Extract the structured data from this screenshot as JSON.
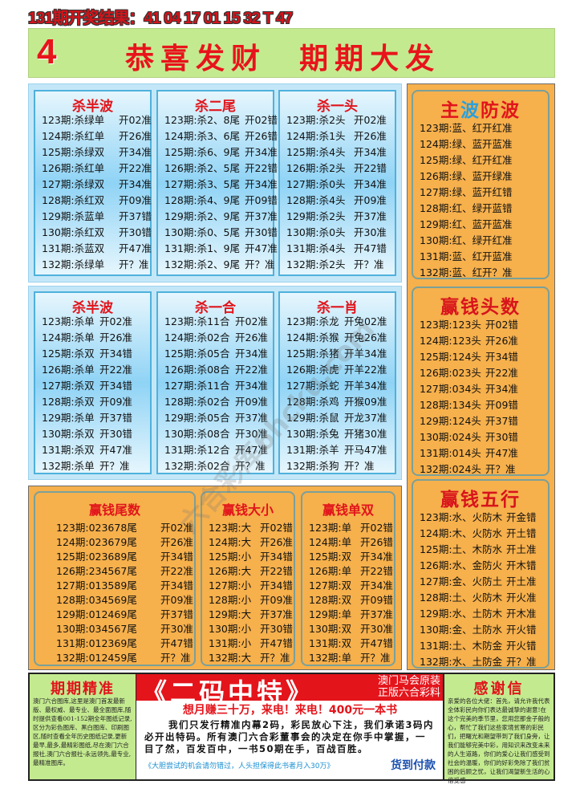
{
  "header": {
    "result": "131期开奖结果：41 04 17 01 15 32 T 47"
  },
  "banner": {
    "number": "4",
    "title": "恭喜发财  期期大发"
  },
  "watermark": "六合彩库6hcku.com",
  "blue1": [
    {
      "title": "杀半波",
      "rows": [
        [
          "123期:杀绿单",
          "开02准"
        ],
        [
          "124期:杀红单",
          "开26准"
        ],
        [
          "125期:杀绿双",
          "开34准"
        ],
        [
          "126期:杀红单",
          "开22准"
        ],
        [
          "127期:杀绿双",
          "开34准"
        ],
        [
          "128期:杀红双",
          "开09准"
        ],
        [
          "129期:杀蓝单",
          "开37错"
        ],
        [
          "130期:杀红双",
          "开30错"
        ],
        [
          "131期:杀蓝双",
          "开47准"
        ],
        [
          "132期:杀绿单",
          "开？准"
        ]
      ]
    },
    {
      "title": "杀二尾",
      "rows": [
        [
          "123期:杀2、8尾",
          "开02错"
        ],
        [
          "124期:杀3、6尾",
          "开26错"
        ],
        [
          "125期:杀6、9尾",
          "开34准"
        ],
        [
          "126期:杀2、5尾",
          "开22错"
        ],
        [
          "127期:杀3、5尾",
          "开34准"
        ],
        [
          "128期:杀4、9尾",
          "开09错"
        ],
        [
          "129期:杀2、9尾",
          "开37准"
        ],
        [
          "130期:杀0、5尾",
          "开30错"
        ],
        [
          "131期:杀1、9尾",
          "开47准"
        ],
        [
          "132期:杀2、9尾",
          "开？准"
        ]
      ]
    },
    {
      "title": "杀一头",
      "rows": [
        [
          "123期:杀2头",
          "开02准"
        ],
        [
          "124期:杀1头",
          "开26准"
        ],
        [
          "125期:杀4头",
          "开34准"
        ],
        [
          "126期:杀2头",
          "开22错"
        ],
        [
          "127期:杀0头",
          "开34准"
        ],
        [
          "128期:杀4头",
          "开09准"
        ],
        [
          "129期:杀2头",
          "开37准"
        ],
        [
          "130期:杀0头",
          "开30准"
        ],
        [
          "131期:杀4头",
          "开47错"
        ],
        [
          "132期:杀2头",
          "开？准"
        ]
      ]
    }
  ],
  "blue2": [
    {
      "title": "杀半波",
      "rows": [
        [
          "123期:杀单",
          "开02准"
        ],
        [
          "124期:杀单",
          "开26准"
        ],
        [
          "125期:杀双",
          "开34错"
        ],
        [
          "126期:杀单",
          "开22准"
        ],
        [
          "127期:杀双",
          "开34错"
        ],
        [
          "128期:杀双",
          "开09准"
        ],
        [
          "129期:杀单",
          "开37错"
        ],
        [
          "130期:杀双",
          "开30错"
        ],
        [
          "131期:杀双",
          "开47准"
        ],
        [
          "132期:杀单",
          "开？准"
        ]
      ]
    },
    {
      "title": "杀一合",
      "rows": [
        [
          "123期:杀11合",
          "开02准"
        ],
        [
          "124期:杀02合",
          "开26准"
        ],
        [
          "125期:杀05合",
          "开34准"
        ],
        [
          "126期:杀08合",
          "开22准"
        ],
        [
          "127期:杀11合",
          "开34准"
        ],
        [
          "128期:杀02合",
          "开09准"
        ],
        [
          "129期:杀05合",
          "开37准"
        ],
        [
          "130期:杀08合",
          "开30准"
        ],
        [
          "131期:杀12合",
          "开47准"
        ],
        [
          "132期:杀02合",
          "开？准"
        ]
      ]
    },
    {
      "title": "杀一肖",
      "rows": [
        [
          "123期:杀龙",
          "开兔02准"
        ],
        [
          "124期:杀猴",
          "开兔26准"
        ],
        [
          "125期:杀猪",
          "开羊34准"
        ],
        [
          "126期:杀虎",
          "开羊22准"
        ],
        [
          "127期:杀蛇",
          "开羊34准"
        ],
        [
          "128期:杀鸡",
          "开猴09准"
        ],
        [
          "129期:杀鼠",
          "开龙37准"
        ],
        [
          "130期:杀兔",
          "开猪30准"
        ],
        [
          "131期:杀羊",
          "开马47准"
        ],
        [
          "132期:杀狗",
          "开？准"
        ]
      ]
    }
  ],
  "orange_bottom": [
    {
      "title": "赢钱尾数",
      "rows": [
        [
          "123期:023678尾",
          "开02准"
        ],
        [
          "124期:023679尾",
          "开26准"
        ],
        [
          "125期:023689尾",
          "开34错"
        ],
        [
          "126期:234567尾",
          "开22准"
        ],
        [
          "127期:013589尾",
          "开34错"
        ],
        [
          "128期:034569尾",
          "开09准"
        ],
        [
          "129期:012469尾",
          "开37错"
        ],
        [
          "130期:034567尾",
          "开30准"
        ],
        [
          "131期:012369尾",
          "开47错"
        ],
        [
          "132期:012459尾",
          "开？准"
        ]
      ]
    },
    {
      "title": "赢钱大小",
      "rows": [
        [
          "123期:大",
          "开02错"
        ],
        [
          "124期:大",
          "开26准"
        ],
        [
          "125期:小",
          "开34错"
        ],
        [
          "126期:大",
          "开22错"
        ],
        [
          "127期:小",
          "开34错"
        ],
        [
          "128期:小",
          "开09准"
        ],
        [
          "129期:大",
          "开37准"
        ],
        [
          "130期:小",
          "开30错"
        ],
        [
          "131期:小",
          "开47错"
        ],
        [
          "132期:大",
          "开？准"
        ]
      ]
    },
    {
      "title": "赢钱单双",
      "rows": [
        [
          "123期:单",
          "开02错"
        ],
        [
          "124期:单",
          "开26错"
        ],
        [
          "125期:双",
          "开34准"
        ],
        [
          "126期:单",
          "开22错"
        ],
        [
          "127期:双",
          "开34准"
        ],
        [
          "128期:双",
          "开09错"
        ],
        [
          "129期:单",
          "开37准"
        ],
        [
          "130期:双",
          "开30准"
        ],
        [
          "131期:双",
          "开47错"
        ],
        [
          "132期:单",
          "开？准"
        ]
      ]
    }
  ],
  "right": [
    {
      "title_parts": [
        "主",
        "波",
        "防波"
      ],
      "rows": [
        [
          "123期:蓝、红",
          "开红准"
        ],
        [
          "124期:绿、蓝",
          "开蓝准"
        ],
        [
          "125期:绿、红",
          "开红准"
        ],
        [
          "126期:绿、蓝",
          "开绿准"
        ],
        [
          "127期:绿、蓝",
          "开红错"
        ],
        [
          "128期:红、绿",
          "开蓝错"
        ],
        [
          "129期:红、蓝",
          "开蓝准"
        ],
        [
          "130期:红、绿",
          "开红准"
        ],
        [
          "131期:蓝、红",
          "开蓝准"
        ],
        [
          "132期:蓝、红",
          "开？准"
        ]
      ]
    },
    {
      "title": "赢钱头数",
      "rows": [
        [
          "123期:123头",
          "开02错"
        ],
        [
          "124期:123头",
          "开26准"
        ],
        [
          "125期:124头",
          "开34错"
        ],
        [
          "126期:023头",
          "开22准"
        ],
        [
          "127期:034头",
          "开34准"
        ],
        [
          "128期:134头",
          "开09错"
        ],
        [
          "129期:124头",
          "开37错"
        ],
        [
          "130期:024头",
          "开30错"
        ],
        [
          "131期:014头",
          "开47准"
        ],
        [
          "132期:024头",
          "开？准"
        ]
      ]
    },
    {
      "title": "赢钱五行",
      "rows": [
        [
          "123期:水、火防木",
          "开金错"
        ],
        [
          "124期:木、火防水",
          "开土错"
        ],
        [
          "125期:土、木防水",
          "开土准"
        ],
        [
          "126期:水、金防火",
          "开木错"
        ],
        [
          "127期:金、火防土",
          "开土准"
        ],
        [
          "128期:土、火防木",
          "开火准"
        ],
        [
          "129期:水、土防木",
          "开木准"
        ],
        [
          "130期:金、土防水",
          "开火错"
        ],
        [
          "131期:土、木防金",
          "开火错"
        ],
        [
          "132期:水、土防金",
          "开？准"
        ]
      ]
    }
  ],
  "footer": {
    "left_title": "期期精准",
    "left_text": "澳门六合图库,这里是澳门首发最新版、最权威、最专业、最全面图库,随时提供查看001-152期全年图纸记录,区分为彩色图库、黑白图库、印刷图区,随时查看全年历史图纸记录,更新最早,最多,最精彩图纸,尽在澳门六合报社,澳门六合报社-永远领先,最专业,最精准图库。",
    "ad_title": "《二码中特》",
    "ad_side1": "澳门马会原装",
    "ad_side2": "正版六合彩料",
    "ad_slogan": "想月赚三十万，来电！来电！400元一本书",
    "ad_body": "我们只发行精准内幕2码，彩民放心下注，我们承诺3码内必开出特码。所有澳门六合彩董事会的决定在你手中掌握，一目了然，百发百中，一书50期在手，百战百胜。",
    "ad_note": "《大胆尝试的机会请勿错过，人头担保得此书者月入30万》",
    "ad_pay": "货到付款",
    "right_title": "感谢信",
    "right_text": "亲爱的各位大佬：首先，请允许我代表全体彩民向你们表达最诚挚的谢意!在这个完美的季节里，您用您那金子般的心，帮忙了我们这些家境贫寒的彩民们，把曙光和期望带到了我们身旁，让我们能够完美中彩，用知识来改变未来的人生道路，你们的爱心让我们感受到社会的温暖，你们的好彩免除了我们贫困的后顾之忧，让我们渴望新生活的心倍受感"
  },
  "colors": {
    "red": "#e1141b",
    "blue_bg": "#8fd3f5",
    "orange_bg": "#f6b04c",
    "green_bg": "#c4ea90"
  }
}
